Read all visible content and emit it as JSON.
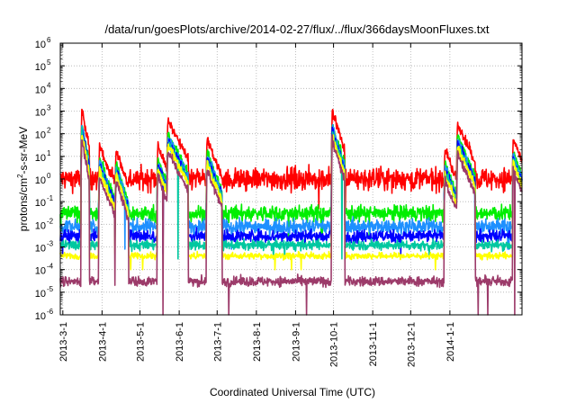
{
  "chart_data": {
    "type": "line",
    "title": "/data/run/goesPlots/archive/2014-02-27/flux/../flux/366daysMoonFluxes.txt",
    "xlabel": "Coordinated Universal Time (UTC)",
    "ylabel_parts": {
      "pre": "protons/cm",
      "sup": "2",
      "post": "-s-sr-MeV"
    },
    "y_scale": "log",
    "ylim_exp": [
      -6,
      6
    ],
    "y_tick_exponents": [
      -6,
      -5,
      -4,
      -3,
      -2,
      -1,
      0,
      1,
      2,
      3,
      4,
      5,
      6
    ],
    "y_tick_base": "10",
    "x_start": "2013-02-27",
    "x_end": "2014-02-27",
    "x_ticks": [
      {
        "date": "2013-03-01",
        "label": "2013-3-1"
      },
      {
        "date": "2013-04-01",
        "label": "2013-4-1"
      },
      {
        "date": "2013-05-01",
        "label": "2013-5-1"
      },
      {
        "date": "2013-06-01",
        "label": "2013-6-1"
      },
      {
        "date": "2013-07-01",
        "label": "2013-7-1"
      },
      {
        "date": "2013-08-01",
        "label": "2013-8-1"
      },
      {
        "date": "2013-09-01",
        "label": "2013-9-1"
      },
      {
        "date": "2013-10-01",
        "label": "2013-10-1"
      },
      {
        "date": "2013-11-01",
        "label": "2013-11-1"
      },
      {
        "date": "2013-12-01",
        "label": "2013-12-1"
      },
      {
        "date": "2014-01-01",
        "label": "2014-1-1"
      }
    ],
    "grid": true,
    "series": [
      {
        "color": "#ff0000",
        "baseline": 1.0,
        "jitter": 0.7,
        "floor": 0.05
      },
      {
        "color": "#00ee00",
        "baseline": 0.03,
        "jitter": 0.5,
        "floor": 0.003
      },
      {
        "color": "#1e90ff",
        "baseline": 0.008,
        "jitter": 0.45,
        "floor": 0.0008
      },
      {
        "color": "#0000ff",
        "baseline": 0.003,
        "jitter": 0.4,
        "floor": 0.0005
      },
      {
        "color": "#00c8a0",
        "baseline": 0.0012,
        "jitter": 0.3,
        "floor": 0.0003
      },
      {
        "color": "#ffff00",
        "baseline": 0.0004,
        "jitter": 0.2,
        "floor": 0.0001
      },
      {
        "color": "#9c3b6a",
        "baseline": 3e-05,
        "jitter": 0.3,
        "floor": 1e-06
      }
    ],
    "events": [
      {
        "date": "2013-03-16",
        "peak": 1200,
        "width_days": 1.5
      },
      {
        "date": "2013-03-30",
        "peak": 30,
        "width_days": 3
      },
      {
        "date": "2013-04-12",
        "peak": 20,
        "width_days": 2.5
      },
      {
        "date": "2013-05-15",
        "peak": 30,
        "width_days": 3
      },
      {
        "date": "2013-05-23",
        "peak": 400,
        "width_days": 4
      },
      {
        "date": "2013-06-23",
        "peak": 60,
        "width_days": 3
      },
      {
        "date": "2013-09-30",
        "peak": 1000,
        "width_days": 2.5
      },
      {
        "date": "2013-12-28",
        "peak": 20,
        "width_days": 3
      },
      {
        "date": "2014-01-07",
        "peak": 300,
        "width_days": 3.5
      },
      {
        "date": "2014-02-20",
        "peak": 60,
        "width_days": 3
      }
    ]
  }
}
